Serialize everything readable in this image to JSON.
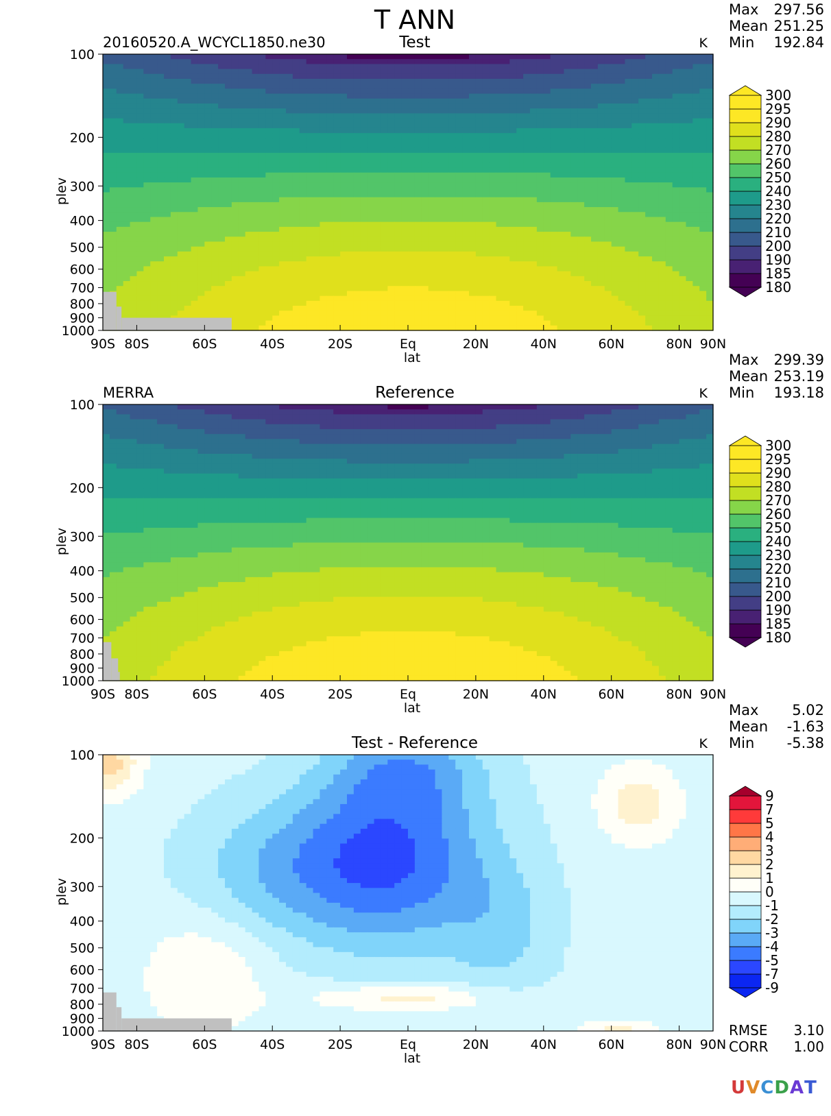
{
  "figure_title": "T ANN",
  "logo": "UVCDAT",
  "chart_data": [
    {
      "type": "heatmap",
      "name": "test",
      "title": "Test",
      "left_label": "20160520.A_WCYCL1850.ne30",
      "units": "K",
      "xlabel": "lat",
      "ylabel": "plev",
      "xlim": [
        -90,
        90
      ],
      "ylim": [
        1000,
        100
      ],
      "x_ticks": [
        {
          "value": -90,
          "label": "90S"
        },
        {
          "value": -80,
          "label": "80S"
        },
        {
          "value": -60,
          "label": "60S"
        },
        {
          "value": -40,
          "label": "40S"
        },
        {
          "value": -20,
          "label": "20S"
        },
        {
          "value": 0,
          "label": "Eq"
        },
        {
          "value": 20,
          "label": "20N"
        },
        {
          "value": 40,
          "label": "40N"
        },
        {
          "value": 60,
          "label": "60N"
        },
        {
          "value": 80,
          "label": "80N"
        },
        {
          "value": 90,
          "label": "90N"
        }
      ],
      "y_ticks": [
        {
          "value": 100,
          "label": "100"
        },
        {
          "value": 200,
          "label": "200"
        },
        {
          "value": 300,
          "label": "300"
        },
        {
          "value": 400,
          "label": "400"
        },
        {
          "value": 500,
          "label": "500"
        },
        {
          "value": 600,
          "label": "600"
        },
        {
          "value": 700,
          "label": "700"
        },
        {
          "value": 800,
          "label": "800"
        },
        {
          "value": 900,
          "label": "900"
        },
        {
          "value": 1000,
          "label": "1000"
        }
      ],
      "stats": [
        {
          "label": "Max",
          "value": "297.56"
        },
        {
          "label": "Mean",
          "value": "251.25"
        },
        {
          "label": "Min",
          "value": "192.84"
        }
      ],
      "levels": [
        180,
        185,
        190,
        200,
        210,
        220,
        230,
        240,
        250,
        260,
        270,
        280,
        290,
        295,
        300
      ],
      "colors": [
        "#440154",
        "#482173",
        "#433e85",
        "#38598c",
        "#2d708e",
        "#25858e",
        "#1e9b8a",
        "#2ab07f",
        "#52c569",
        "#86d549",
        "#c2df23",
        "#e0e01c",
        "#fde725"
      ],
      "under_color": "#440154",
      "over_color": "#fde725",
      "field": {
        "kind": "temperature",
        "max": 297.56,
        "min": 192.84
      },
      "masks": [
        {
          "lon_from": -90,
          "lon_to": -86,
          "plev_from": 725
        },
        {
          "lon_from": -86,
          "lon_to": -84.5,
          "plev_from": 820
        },
        {
          "lon_from": -84.5,
          "lon_to": -52,
          "plev_from": 900
        }
      ]
    },
    {
      "type": "heatmap",
      "name": "reference",
      "title": "Reference",
      "left_label": "MERRA",
      "units": "K",
      "xlabel": "lat",
      "ylabel": "plev",
      "xlim": [
        -90,
        90
      ],
      "ylim": [
        1000,
        100
      ],
      "x_ticks": [
        {
          "value": -90,
          "label": "90S"
        },
        {
          "value": -80,
          "label": "80S"
        },
        {
          "value": -60,
          "label": "60S"
        },
        {
          "value": -40,
          "label": "40S"
        },
        {
          "value": -20,
          "label": "20S"
        },
        {
          "value": 0,
          "label": "Eq"
        },
        {
          "value": 20,
          "label": "20N"
        },
        {
          "value": 40,
          "label": "40N"
        },
        {
          "value": 60,
          "label": "60N"
        },
        {
          "value": 80,
          "label": "80N"
        },
        {
          "value": 90,
          "label": "90N"
        }
      ],
      "y_ticks": [
        {
          "value": 100,
          "label": "100"
        },
        {
          "value": 200,
          "label": "200"
        },
        {
          "value": 300,
          "label": "300"
        },
        {
          "value": 400,
          "label": "400"
        },
        {
          "value": 500,
          "label": "500"
        },
        {
          "value": 600,
          "label": "600"
        },
        {
          "value": 700,
          "label": "700"
        },
        {
          "value": 800,
          "label": "800"
        },
        {
          "value": 900,
          "label": "900"
        },
        {
          "value": 1000,
          "label": "1000"
        }
      ],
      "stats": [
        {
          "label": "Max",
          "value": "299.39"
        },
        {
          "label": "Mean",
          "value": "253.19"
        },
        {
          "label": "Min",
          "value": "193.18"
        }
      ],
      "levels": [
        180,
        185,
        190,
        200,
        210,
        220,
        230,
        240,
        250,
        260,
        270,
        280,
        290,
        295,
        300
      ],
      "colors": [
        "#440154",
        "#482173",
        "#433e85",
        "#38598c",
        "#2d708e",
        "#25858e",
        "#1e9b8a",
        "#2ab07f",
        "#52c569",
        "#86d549",
        "#c2df23",
        "#e0e01c",
        "#fde725"
      ],
      "under_color": "#440154",
      "over_color": "#fde725",
      "field": {
        "kind": "temperature",
        "max": 299.39,
        "min": 193.18
      },
      "masks": [
        {
          "lon_from": -90,
          "lon_to": -87.5,
          "plev_from": 725
        },
        {
          "lon_from": -87.5,
          "lon_to": -85.5,
          "plev_from": 830
        },
        {
          "lon_from": -85.5,
          "lon_to": -85,
          "plev_from": 930
        }
      ]
    },
    {
      "type": "heatmap",
      "name": "difference",
      "title": "Test - Reference",
      "left_label": "",
      "units": "K",
      "xlabel": "lat",
      "ylabel": "plev",
      "xlim": [
        -90,
        90
      ],
      "ylim": [
        1000,
        100
      ],
      "x_ticks": [
        {
          "value": -90,
          "label": "90S"
        },
        {
          "value": -80,
          "label": "80S"
        },
        {
          "value": -60,
          "label": "60S"
        },
        {
          "value": -40,
          "label": "40S"
        },
        {
          "value": -20,
          "label": "20S"
        },
        {
          "value": 0,
          "label": "Eq"
        },
        {
          "value": 20,
          "label": "20N"
        },
        {
          "value": 40,
          "label": "40N"
        },
        {
          "value": 60,
          "label": "60N"
        },
        {
          "value": 80,
          "label": "80N"
        },
        {
          "value": 90,
          "label": "90N"
        }
      ],
      "y_ticks": [
        {
          "value": 100,
          "label": "100"
        },
        {
          "value": 200,
          "label": "200"
        },
        {
          "value": 300,
          "label": "300"
        },
        {
          "value": 400,
          "label": "400"
        },
        {
          "value": 500,
          "label": "500"
        },
        {
          "value": 600,
          "label": "600"
        },
        {
          "value": 700,
          "label": "700"
        },
        {
          "value": 800,
          "label": "800"
        },
        {
          "value": 900,
          "label": "900"
        },
        {
          "value": 1000,
          "label": "1000"
        }
      ],
      "stats": [
        {
          "label": "Max",
          "value": "5.02"
        },
        {
          "label": "Mean",
          "value": "-1.63"
        },
        {
          "label": "Min",
          "value": "-5.38"
        }
      ],
      "extra_stats": [
        {
          "label": "RMSE",
          "value": "3.10"
        },
        {
          "label": "CORR",
          "value": "1.00"
        }
      ],
      "levels": [
        -9,
        -7,
        -5,
        -4,
        -3,
        -2,
        -1,
        0,
        1,
        2,
        3,
        4,
        5,
        7,
        9
      ],
      "colors": [
        "#0b26f2",
        "#2b47ff",
        "#3b7bff",
        "#5aaaf6",
        "#80d4fa",
        "#b3ecfd",
        "#d9f8fe",
        "#fffff8",
        "#fff2cf",
        "#ffd8a2",
        "#ffad77",
        "#ff7647",
        "#ff3a3a",
        "#e3153b",
        "#a5002c"
      ],
      "under_color": "#0b26f2",
      "over_color": "#a5002c",
      "field": {
        "kind": "difference",
        "max": 5.02,
        "min": -5.38
      },
      "masks": [
        {
          "lon_from": -90,
          "lon_to": -86,
          "plev_from": 725
        },
        {
          "lon_from": -86,
          "lon_to": -84.5,
          "plev_from": 820
        },
        {
          "lon_from": -84.5,
          "lon_to": -52,
          "plev_from": 900
        }
      ]
    }
  ]
}
